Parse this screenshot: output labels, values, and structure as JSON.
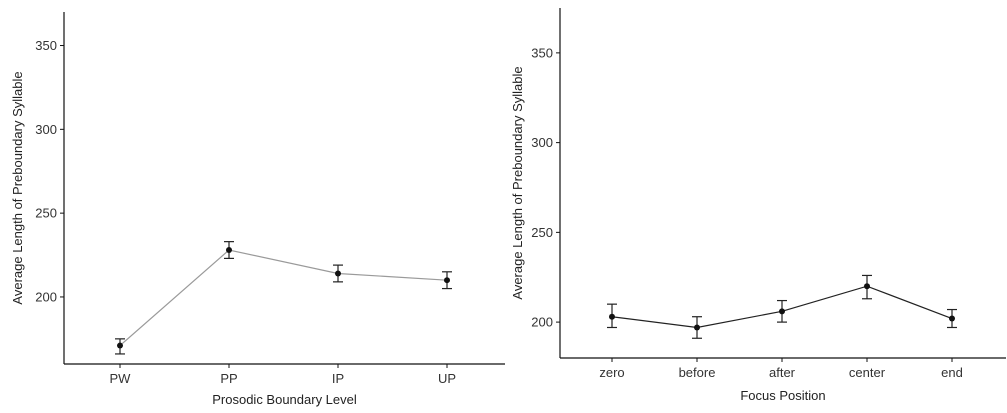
{
  "chart_data": [
    {
      "type": "line",
      "title": "",
      "xlabel": "Prosodic Boundary Level",
      "ylabel": "Average Length of  Preboundary Syllable",
      "categories": [
        "PW",
        "PP",
        "IP",
        "UP"
      ],
      "ylim": [
        160,
        370
      ],
      "yticks": [
        200,
        250,
        300,
        350
      ],
      "grid": false,
      "series": [
        {
          "values": [
            171,
            228,
            214,
            210
          ],
          "error_low": [
            166,
            223,
            209,
            205
          ],
          "error_high": [
            175,
            233,
            219,
            215
          ],
          "color": "#9a9a9a"
        }
      ]
    },
    {
      "type": "line",
      "title": "",
      "xlabel": "Focus Position",
      "ylabel": "Average Length of  Preboundary Syllable",
      "categories": [
        "zero",
        "before",
        "after",
        "center",
        "end"
      ],
      "ylim": [
        180,
        375
      ],
      "yticks": [
        200,
        250,
        300,
        350
      ],
      "grid": false,
      "series": [
        {
          "values": [
            203,
            197,
            206,
            220,
            202
          ],
          "error_low": [
            197,
            191,
            200,
            213,
            197
          ],
          "error_high": [
            210,
            203,
            212,
            226,
            207
          ],
          "color": "#222222"
        }
      ]
    }
  ]
}
